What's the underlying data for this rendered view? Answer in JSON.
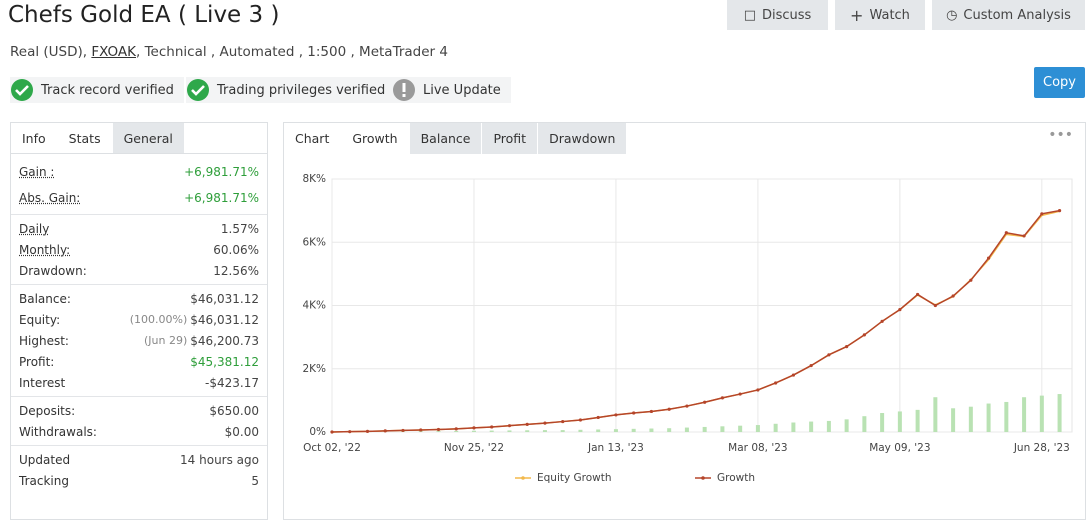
{
  "header": {
    "title": "Chefs Gold EA ( Live 3 )",
    "account": "Real (USD),",
    "broker": "FXOAK",
    "details": ", Technical , Automated , 1:500 , MetaTrader 4"
  },
  "buttons": [
    "Discuss",
    "Watch",
    "Custom Analysis"
  ],
  "copy": "Copy",
  "badges": [
    "Track record verified",
    "Trading privileges verified",
    "Live Update"
  ],
  "info_tabs": [
    "Info",
    "Stats",
    "General"
  ],
  "stats": [
    [
      {
        "label": "Gain :",
        "value": "+6,981.71%",
        "color": "#2e9e3a",
        "underline": true
      },
      {
        "label": "Abs. Gain:",
        "value": "+6,981.71%",
        "color": "#2e9e3a",
        "underline": true
      }
    ],
    [
      {
        "label": "Daily",
        "value": "1.57%",
        "underline": true
      },
      {
        "label": "Monthly:",
        "value": "60.06%",
        "underline": true
      },
      {
        "label": "Drawdown:",
        "value": "12.56%"
      }
    ],
    [
      {
        "label": "Balance:",
        "value": "$46,031.12"
      },
      {
        "label": "Equity:",
        "note": "(100.00%)",
        "value": "$46,031.12"
      },
      {
        "label": "Highest:",
        "note": "(Jun 29)",
        "value": "$46,200.73"
      },
      {
        "label": "Profit:",
        "value": "$45,381.12",
        "color": "#2e9e3a"
      },
      {
        "label": "Interest",
        "value": "-$423.17"
      }
    ],
    [
      {
        "label": "Deposits:",
        "value": "$650.00"
      },
      {
        "label": "Withdrawals:",
        "value": "$0.00"
      }
    ],
    [
      {
        "label": "Updated",
        "value": "14 hours ago"
      },
      {
        "label": "Tracking",
        "value": "5"
      }
    ]
  ],
  "chart_tabs": [
    "Chart",
    "Growth",
    "Balance",
    "Profit",
    "Drawdown"
  ],
  "chart_data": {
    "type": "line",
    "categories": [
      "Oct 02, '22",
      null,
      null,
      null,
      null,
      null,
      null,
      null,
      "Nov 25, '22",
      null,
      null,
      null,
      null,
      null,
      null,
      null,
      "Jan 13, '23",
      null,
      null,
      null,
      null,
      null,
      null,
      null,
      "Mar 08, '23",
      null,
      null,
      null,
      null,
      null,
      null,
      null,
      "May 09, '23",
      null,
      null,
      null,
      null,
      null,
      null,
      null,
      "Jun 28, '23",
      null
    ],
    "series": [
      {
        "name": "Equity Growth",
        "color": "#f2b84b",
        "values": [
          0,
          10,
          20,
          35,
          50,
          65,
          80,
          100,
          130,
          160,
          200,
          240,
          280,
          330,
          380,
          460,
          540,
          600,
          650,
          720,
          820,
          940,
          1080,
          1200,
          1330,
          1550,
          1800,
          2100,
          2440,
          2700,
          3070,
          3500,
          3870,
          4330,
          4020,
          4280,
          4820,
          5450,
          6250,
          6180,
          6850,
          6980
        ]
      },
      {
        "name": "Growth",
        "color": "#b5452a",
        "values": [
          0,
          10,
          20,
          35,
          50,
          65,
          80,
          100,
          130,
          160,
          200,
          240,
          280,
          330,
          380,
          460,
          540,
          600,
          650,
          720,
          820,
          940,
          1080,
          1200,
          1330,
          1550,
          1800,
          2100,
          2440,
          2700,
          3070,
          3500,
          3870,
          4350,
          4000,
          4300,
          4800,
          5500,
          6300,
          6200,
          6900,
          7000
        ]
      },
      {
        "type": "bar",
        "color": "#b9e2b3",
        "values": [
          10,
          15,
          20,
          20,
          25,
          30,
          30,
          35,
          40,
          45,
          50,
          55,
          60,
          60,
          70,
          80,
          90,
          100,
          110,
          120,
          140,
          160,
          180,
          200,
          220,
          260,
          300,
          330,
          350,
          400,
          500,
          600,
          650,
          700,
          1100,
          750,
          800,
          900,
          950,
          1100,
          1150,
          1200
        ]
      }
    ],
    "ylim": [
      0,
      8000
    ],
    "yticks": [
      {
        "value": 0,
        "label": "0%"
      },
      {
        "value": 2000,
        "label": "2K%"
      },
      {
        "value": 4000,
        "label": "4K%"
      },
      {
        "value": 6000,
        "label": "6K%"
      },
      {
        "value": 8000,
        "label": "8K%"
      }
    ],
    "grid": true
  }
}
